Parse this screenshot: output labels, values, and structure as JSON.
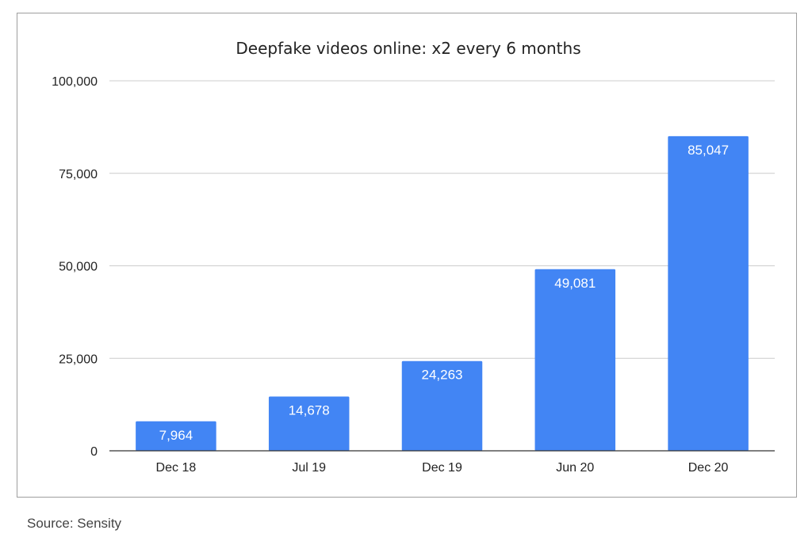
{
  "chart_data": {
    "type": "bar",
    "title": "Deepfake videos online: x2 every 6 months",
    "xlabel": "",
    "ylabel": "",
    "categories": [
      "Dec 18",
      "Jul 19",
      "Dec 19",
      "Jun 20",
      "Dec 20"
    ],
    "values": [
      7964,
      14678,
      24263,
      49081,
      85047
    ],
    "value_labels": [
      "7,964",
      "14,678",
      "24,263",
      "49,081",
      "85,047"
    ],
    "ylim": [
      0,
      100000
    ],
    "yticks": [
      0,
      25000,
      50000,
      75000,
      100000
    ],
    "ytick_labels": [
      "0",
      "25,000",
      "50,000",
      "75,000",
      "100,000"
    ],
    "grid": true,
    "legend": "none",
    "bar_color": "#4285f4",
    "label_color": "#ffffff",
    "grid_color": "#cccccc",
    "axis_color": "#333333"
  },
  "source": "Source: Sensity"
}
